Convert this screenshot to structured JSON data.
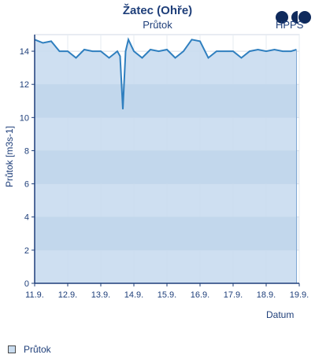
{
  "header": {
    "title": "Žatec (Ohře)",
    "subtitle": "Průtok",
    "logo_text": "HPPS"
  },
  "legend": {
    "items": [
      {
        "label": "Průtok"
      }
    ]
  },
  "colors": {
    "line": "#2f7fbf",
    "fill": "#c9dcef",
    "band": "#b9d1e8",
    "axis": "#1f3f7a",
    "text": "#1f3f7a"
  },
  "chart_data": {
    "type": "area",
    "ylabel": "Průtok [m3s-1]",
    "xlabel": "Datum",
    "ylim": [
      0,
      15
    ],
    "yticks": [
      0,
      2,
      4,
      6,
      8,
      10,
      12,
      14
    ],
    "xlim": [
      "11.9.",
      "19.9."
    ],
    "xticks": [
      "11.9.",
      "12.9.",
      "13.9.",
      "14.9.",
      "15.9.",
      "16.9.",
      "17.9.",
      "18.9.",
      "19.9."
    ],
    "grid": true,
    "series": [
      {
        "name": "Průtok",
        "x": [
          "11.9. 00:00",
          "11.9. 06:00",
          "11.9. 12:00",
          "11.9. 18:00",
          "12.9. 00:00",
          "12.9. 06:00",
          "12.9. 12:00",
          "12.9. 18:00",
          "13.9. 00:00",
          "13.9. 06:00",
          "13.9. 12:00",
          "13.9. 14:00",
          "13.9. 16:00",
          "13.9. 18:00",
          "13.9. 20:00",
          "14.9. 00:00",
          "14.9. 06:00",
          "14.9. 12:00",
          "14.9. 18:00",
          "15.9. 00:00",
          "15.9. 06:00",
          "15.9. 12:00",
          "15.9. 18:00",
          "16.9. 00:00",
          "16.9. 06:00",
          "16.9. 12:00",
          "16.9. 18:00",
          "17.9. 00:00",
          "17.9. 06:00",
          "17.9. 12:00",
          "17.9. 18:00",
          "18.9. 00:00",
          "18.9. 06:00",
          "18.9. 12:00",
          "18.9. 18:00",
          "18.9. 22:00"
        ],
        "values": [
          14.7,
          14.5,
          14.6,
          14.0,
          14.0,
          13.6,
          14.1,
          14.0,
          14.0,
          13.6,
          14.0,
          13.7,
          10.5,
          14.0,
          14.7,
          14.0,
          13.6,
          14.1,
          14.0,
          14.1,
          13.6,
          14.0,
          14.7,
          14.6,
          13.6,
          14.0,
          14.0,
          14.0,
          13.6,
          14.0,
          14.1,
          14.0,
          14.1,
          14.0,
          14.0,
          14.1
        ]
      }
    ]
  }
}
